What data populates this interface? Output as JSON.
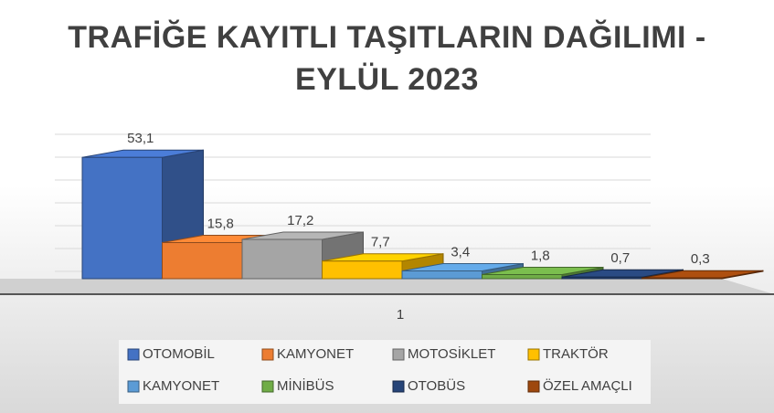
{
  "chart_data": {
    "type": "bar3d",
    "title": "TRAFİĞE KAYITLI TAŞITLARIN DAĞILIMI - EYLÜL 2023",
    "categories": [
      "1"
    ],
    "ylim": [
      0,
      60
    ],
    "yticks": [
      0,
      10,
      20,
      30,
      40,
      50,
      60
    ],
    "grid": true,
    "series": [
      {
        "name": "OTOMOBİL",
        "color": "#4472c4",
        "values": [
          53.1
        ],
        "value_labels": [
          "53,1"
        ]
      },
      {
        "name": "KAMYONET",
        "color": "#ed7d31",
        "values": [
          15.8
        ],
        "value_labels": [
          "15,8"
        ]
      },
      {
        "name": "MOTOSİKLET",
        "color": "#a5a5a5",
        "values": [
          17.2
        ],
        "value_labels": [
          "17,2"
        ]
      },
      {
        "name": "TRAKTÖR",
        "color": "#ffc000",
        "values": [
          7.7
        ],
        "value_labels": [
          "7,7"
        ]
      },
      {
        "name": "KAMYONET",
        "color": "#5b9bd5",
        "values": [
          3.4
        ],
        "value_labels": [
          "3,4"
        ]
      },
      {
        "name": "MİNİBÜS",
        "color": "#70ad47",
        "values": [
          1.8
        ],
        "value_labels": [
          "1,8"
        ]
      },
      {
        "name": "OTOBÜS",
        "color": "#264478",
        "values": [
          0.7
        ],
        "value_labels": [
          "0,7"
        ]
      },
      {
        "name": "ÖZEL AMAÇLI",
        "color": "#9e480e",
        "values": [
          0.3
        ],
        "value_labels": [
          "0,3"
        ]
      }
    ],
    "legend": "bottom"
  }
}
